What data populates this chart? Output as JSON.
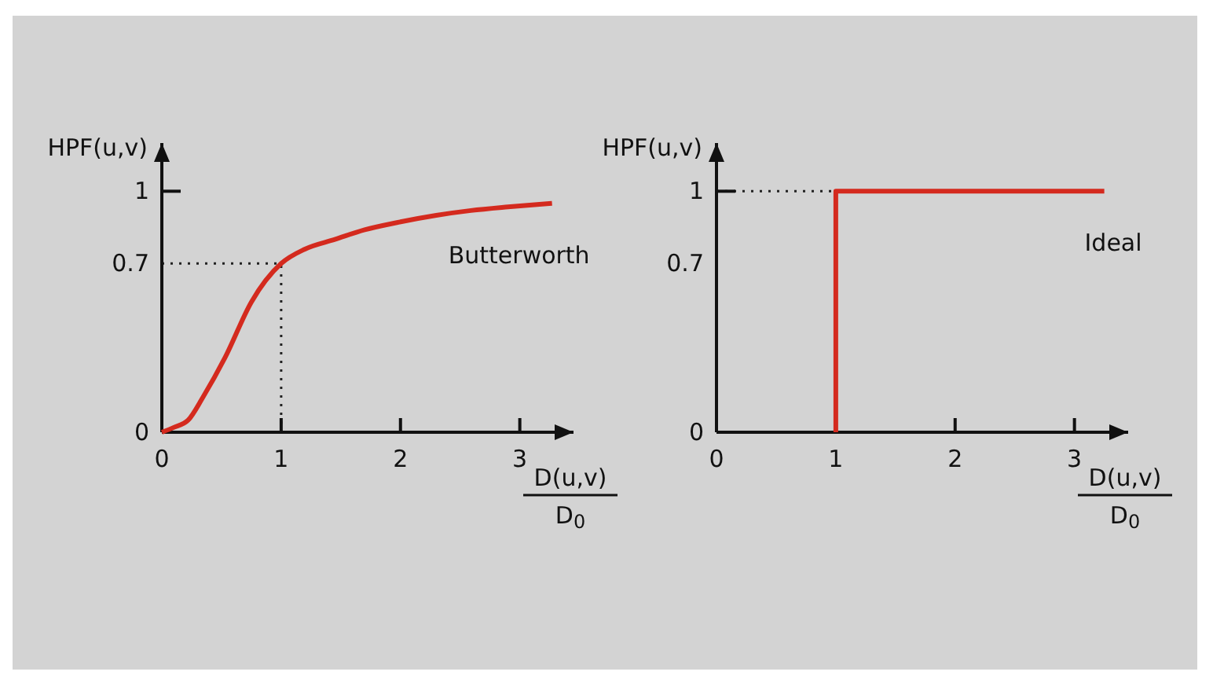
{
  "chart_data": [
    {
      "type": "line",
      "ylabel": "HPF(u,v)",
      "xlabel": "D(u,v)\nD$_{0}$",
      "xlim": [
        0,
        3.45
      ],
      "ylim": [
        0,
        1.2
      ],
      "xticks": [
        0,
        1,
        2,
        3
      ],
      "yticks": [
        0,
        0.7,
        1
      ],
      "series": [
        {
          "name": "Butterworth",
          "color": "#d42a1e",
          "x": [
            0,
            0.1,
            0.22,
            0.35,
            0.53,
            0.75,
            1.0,
            1.2,
            1.45,
            1.7,
            1.97,
            2.3,
            2.59,
            2.9,
            3.27
          ],
          "values": [
            0,
            0.02,
            0.05,
            0.15,
            0.31,
            0.54,
            0.7,
            0.76,
            0.8,
            0.84,
            0.87,
            0.9,
            0.92,
            0.935,
            0.95
          ]
        }
      ],
      "ref_lines": [
        {
          "axis": "y",
          "value": 0.7,
          "line_style": "dotted"
        },
        {
          "axis": "x",
          "value": 1,
          "line_style": "dotted"
        }
      ]
    },
    {
      "type": "line",
      "ylabel": "HPF(u,v)",
      "xlabel": "D(u,v)\nD$_{0}$",
      "xlim": [
        0,
        3.45
      ],
      "ylim": [
        0,
        1.2
      ],
      "xticks": [
        0,
        1,
        2,
        3
      ],
      "yticks": [
        0,
        0.7,
        1
      ],
      "series": [
        {
          "name": "Ideal",
          "color": "#d42a1e",
          "x": [
            1,
            1,
            3.25
          ],
          "values": [
            0,
            1,
            1
          ]
        }
      ],
      "ref_lines": [
        {
          "axis": "y",
          "value": 1,
          "line_style": "dotted"
        }
      ]
    }
  ]
}
